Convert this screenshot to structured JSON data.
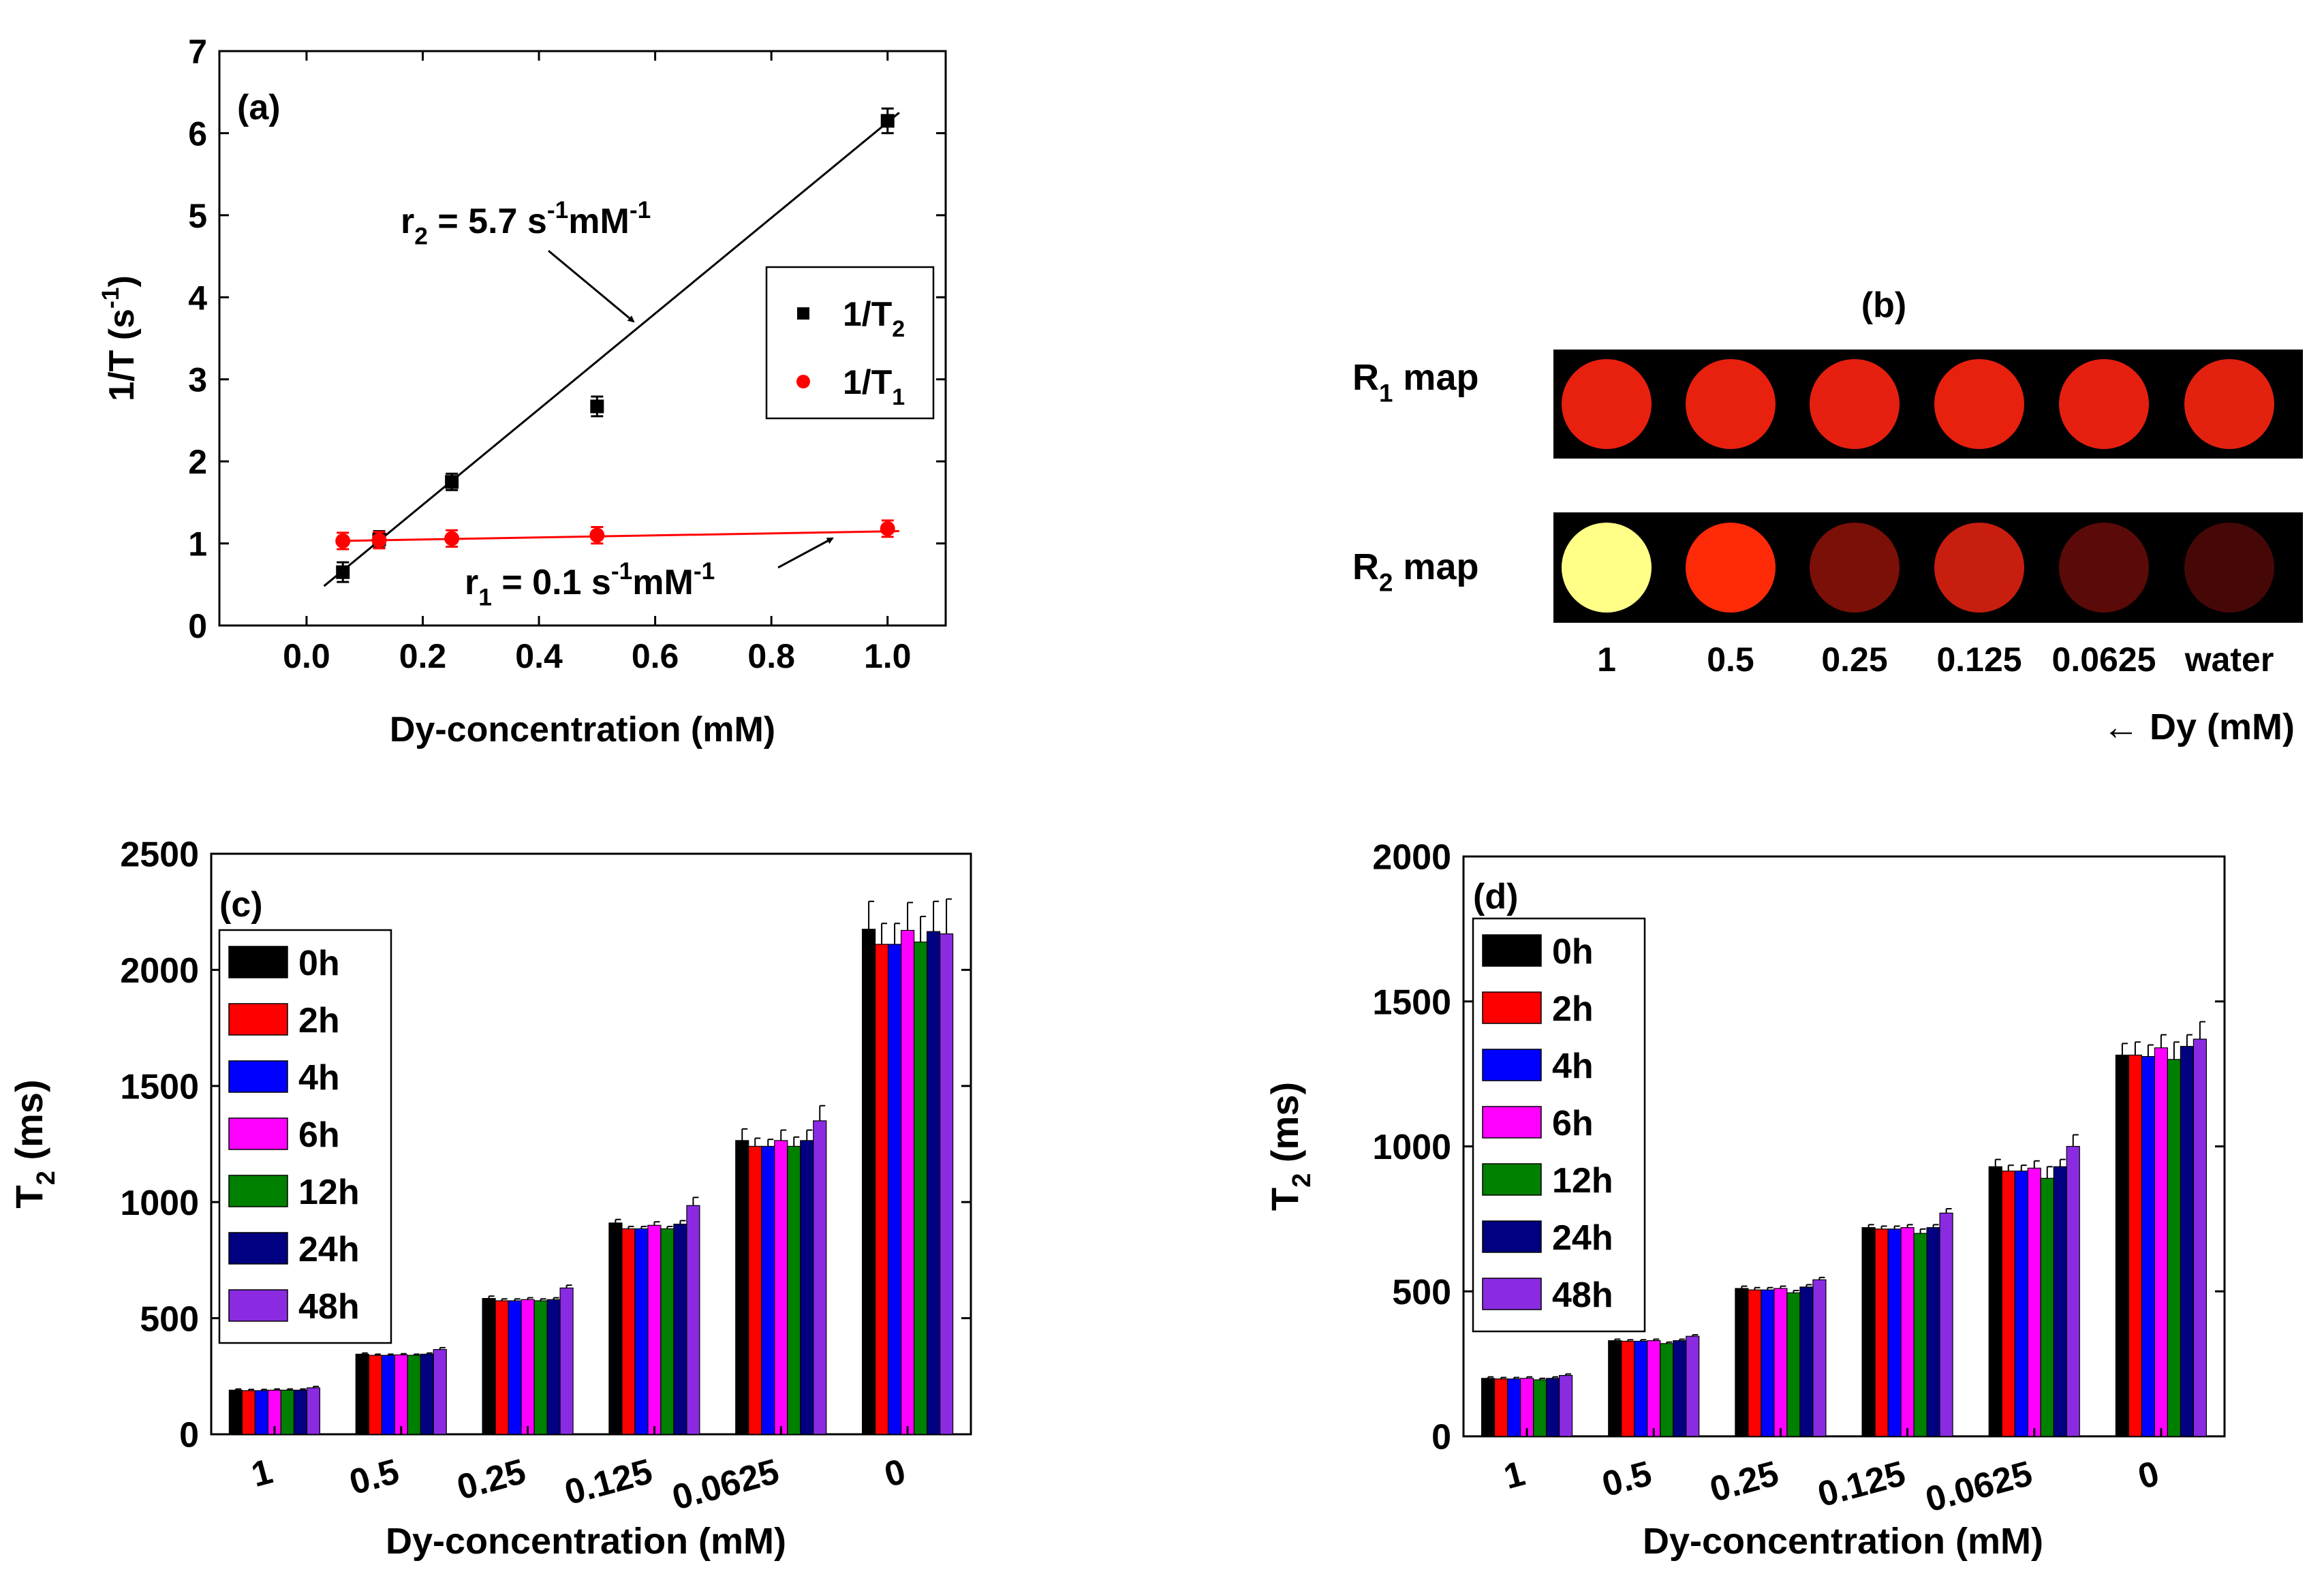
{
  "chart_data": [
    {
      "panel": "(a)",
      "type": "scatter",
      "xlabel": "Dy-concentration (mM)",
      "ylabel": {
        "base": "1/T (s",
        "sup": "-1",
        "close": ")"
      },
      "xlim": [
        -0.15,
        1.1
      ],
      "ylim": [
        0,
        7
      ],
      "xticks": [
        0.0,
        0.2,
        0.4,
        0.6,
        0.8,
        1.0
      ],
      "xtick_labels": [
        "0.0",
        "0.2",
        "0.4",
        "0.6",
        "0.8",
        "1.0"
      ],
      "yticks": [
        0,
        1,
        2,
        3,
        4,
        5,
        6,
        7
      ],
      "ytick_labels": [
        "0",
        "1",
        "2",
        "3",
        "4",
        "5",
        "6",
        "7"
      ],
      "legend": {
        "position": "middle-right",
        "entries": [
          {
            "base": "1/T",
            "sub": "2"
          },
          {
            "base": "1/T",
            "sub": "1"
          }
        ]
      },
      "series": [
        {
          "name": "1/T2",
          "marker": "square",
          "color": "#000000",
          "x": [
            0.0625,
            0.125,
            0.25,
            0.5,
            1.0
          ],
          "y": [
            0.65,
            1.05,
            1.75,
            2.67,
            6.15
          ],
          "err": [
            0.12,
            0.1,
            0.1,
            0.12,
            0.15
          ],
          "fit": {
            "x0": 0.03,
            "y0": 0.48,
            "x1": 1.02,
            "y1": 6.25
          }
        },
        {
          "name": "1/T1",
          "marker": "circle",
          "color": "#ff0000",
          "x": [
            0.0625,
            0.125,
            0.25,
            0.5,
            1.0
          ],
          "y": [
            1.03,
            1.04,
            1.06,
            1.1,
            1.18
          ],
          "err": [
            0.1,
            0.1,
            0.1,
            0.1,
            0.1
          ],
          "fit": {
            "x0": 0.05,
            "y0": 1.03,
            "x1": 1.02,
            "y1": 1.15
          }
        }
      ],
      "annotations": [
        {
          "id": "r2",
          "base": "r",
          "sub": "2",
          "rest1": " = 5.7 s",
          "sup1": "-1",
          "rest2": "mM",
          "sup2": "-1"
        },
        {
          "id": "r1",
          "base": "r",
          "sub": "1",
          "rest1": " = 0.1 s",
          "sup1": "-1",
          "rest2": "mM",
          "sup2": "-1"
        }
      ],
      "panel_label": "(a)"
    },
    {
      "panel": "(b)",
      "type": "image-map",
      "title": "(b)",
      "rows": [
        {
          "label_base": "R",
          "label_sub": "1",
          "label_rest": " map",
          "colors": [
            "#e8200e",
            "#e8200e",
            "#e52010",
            "#e8200e",
            "#e52010",
            "#e2220f"
          ]
        },
        {
          "label_base": "R",
          "label_sub": "2",
          "label_rest": " map",
          "colors": [
            "#ffff88",
            "#ff2a08",
            "#7a1008",
            "#c81e10",
            "#5a0a08",
            "#460807"
          ]
        }
      ],
      "column_labels": [
        "1",
        "0.5",
        "0.25",
        "0.125",
        "0.0625",
        "water"
      ],
      "axis_note": {
        "arrow": "←",
        "text": "Dy (mM)"
      }
    },
    {
      "panel": "(c)",
      "type": "bar",
      "xlabel": "Dy-concentration (mM)",
      "ylabel": {
        "base": "T",
        "sub": "2",
        "rest": " (ms)"
      },
      "ylim": [
        0,
        2500
      ],
      "yticks": [
        0,
        500,
        1000,
        1500,
        2000,
        2500
      ],
      "ytick_labels": [
        "0",
        "500",
        "1000",
        "1500",
        "2000",
        "2500"
      ],
      "categories": [
        "1",
        "0.5",
        "0.25",
        "0.125",
        "0.0625",
        "0"
      ],
      "legend": {
        "position": "top-left"
      },
      "series": [
        {
          "name": "0h",
          "color": "#000000",
          "values": [
            190,
            345,
            585,
            910,
            1265,
            2175
          ],
          "err": [
            5,
            5,
            10,
            15,
            50,
            120
          ]
        },
        {
          "name": "2h",
          "color": "#ff0000",
          "values": [
            188,
            340,
            575,
            885,
            1240,
            2110
          ],
          "err": [
            5,
            5,
            8,
            10,
            35,
            90
          ]
        },
        {
          "name": "4h",
          "color": "#0000ff",
          "values": [
            188,
            340,
            575,
            885,
            1240,
            2110
          ],
          "err": [
            5,
            5,
            8,
            10,
            30,
            90
          ]
        },
        {
          "name": "6h",
          "color": "#ff00ff",
          "values": [
            190,
            342,
            580,
            900,
            1265,
            2170
          ],
          "err": [
            5,
            5,
            8,
            15,
            45,
            120
          ]
        },
        {
          "name": "12h",
          "color": "#008000",
          "values": [
            190,
            340,
            575,
            885,
            1240,
            2120
          ],
          "err": [
            5,
            5,
            8,
            10,
            40,
            110
          ]
        },
        {
          "name": "24h",
          "color": "#000080",
          "values": [
            190,
            345,
            580,
            905,
            1265,
            2165
          ],
          "err": [
            5,
            5,
            8,
            15,
            45,
            130
          ]
        },
        {
          "name": "48h",
          "color": "#8a2be2",
          "values": [
            200,
            365,
            630,
            985,
            1350,
            2155
          ],
          "err": [
            6,
            8,
            12,
            35,
            65,
            150
          ]
        }
      ],
      "panel_label": "(c)"
    },
    {
      "panel": "(d)",
      "type": "bar",
      "xlabel": "Dy-concentration (mM)",
      "ylabel": {
        "base": "T",
        "sub": "2",
        "rest": " (ms)"
      },
      "ylim": [
        0,
        2000
      ],
      "yticks": [
        0,
        500,
        1000,
        1500,
        2000
      ],
      "ytick_labels": [
        "0",
        "500",
        "1000",
        "1500",
        "2000"
      ],
      "categories": [
        "1",
        "0.5",
        "0.25",
        "0.125",
        "0.0625",
        "0"
      ],
      "legend": {
        "position": "top-left"
      },
      "series": [
        {
          "name": "0h",
          "color": "#000000",
          "values": [
            200,
            330,
            510,
            720,
            930,
            1315
          ],
          "err": [
            5,
            5,
            8,
            10,
            25,
            40
          ]
        },
        {
          "name": "2h",
          "color": "#ff0000",
          "values": [
            198,
            328,
            505,
            715,
            915,
            1315
          ],
          "err": [
            5,
            5,
            8,
            10,
            20,
            45
          ]
        },
        {
          "name": "4h",
          "color": "#0000ff",
          "values": [
            198,
            328,
            505,
            715,
            915,
            1310
          ],
          "err": [
            5,
            5,
            8,
            10,
            20,
            40
          ]
        },
        {
          "name": "6h",
          "color": "#ff00ff",
          "values": [
            200,
            330,
            510,
            720,
            925,
            1340
          ],
          "err": [
            5,
            5,
            8,
            10,
            25,
            45
          ]
        },
        {
          "name": "12h",
          "color": "#008000",
          "values": [
            195,
            320,
            495,
            700,
            890,
            1300
          ],
          "err": [
            5,
            5,
            8,
            15,
            40,
            60
          ]
        },
        {
          "name": "24h",
          "color": "#000080",
          "values": [
            200,
            330,
            515,
            720,
            930,
            1345
          ],
          "err": [
            5,
            5,
            8,
            10,
            25,
            40
          ]
        },
        {
          "name": "48h",
          "color": "#8a2be2",
          "values": [
            210,
            345,
            540,
            770,
            1000,
            1370
          ],
          "err": [
            5,
            5,
            8,
            15,
            40,
            60
          ]
        }
      ],
      "panel_label": "(d)"
    }
  ]
}
